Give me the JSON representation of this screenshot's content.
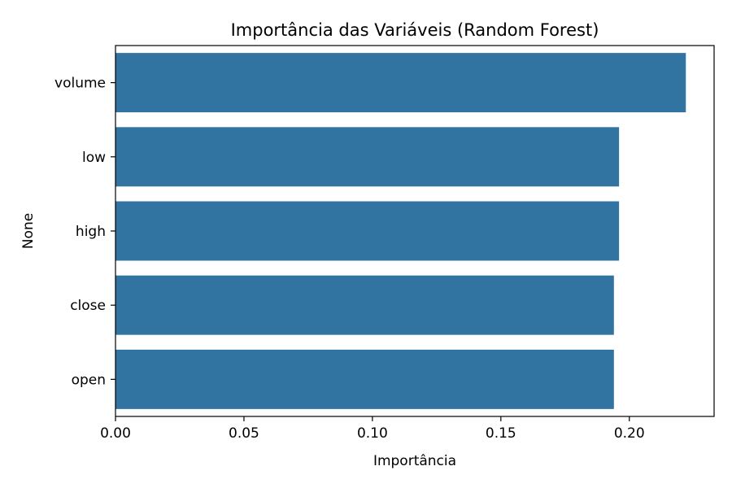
{
  "chart_data": {
    "type": "bar",
    "orientation": "horizontal",
    "title": "Importância das Variáveis (Random Forest)",
    "xlabel": "Importância",
    "ylabel": "None",
    "categories": [
      "volume",
      "low",
      "high",
      "close",
      "open"
    ],
    "values": [
      0.222,
      0.196,
      0.196,
      0.194,
      0.194
    ],
    "xlim": [
      0,
      0.233
    ],
    "xticks": [
      0.0,
      0.05,
      0.1,
      0.15,
      0.2
    ],
    "xtick_labels": [
      "0.00",
      "0.05",
      "0.10",
      "0.15",
      "0.20"
    ],
    "bar_color": "#3274a1",
    "grid": false,
    "legend": "none"
  }
}
